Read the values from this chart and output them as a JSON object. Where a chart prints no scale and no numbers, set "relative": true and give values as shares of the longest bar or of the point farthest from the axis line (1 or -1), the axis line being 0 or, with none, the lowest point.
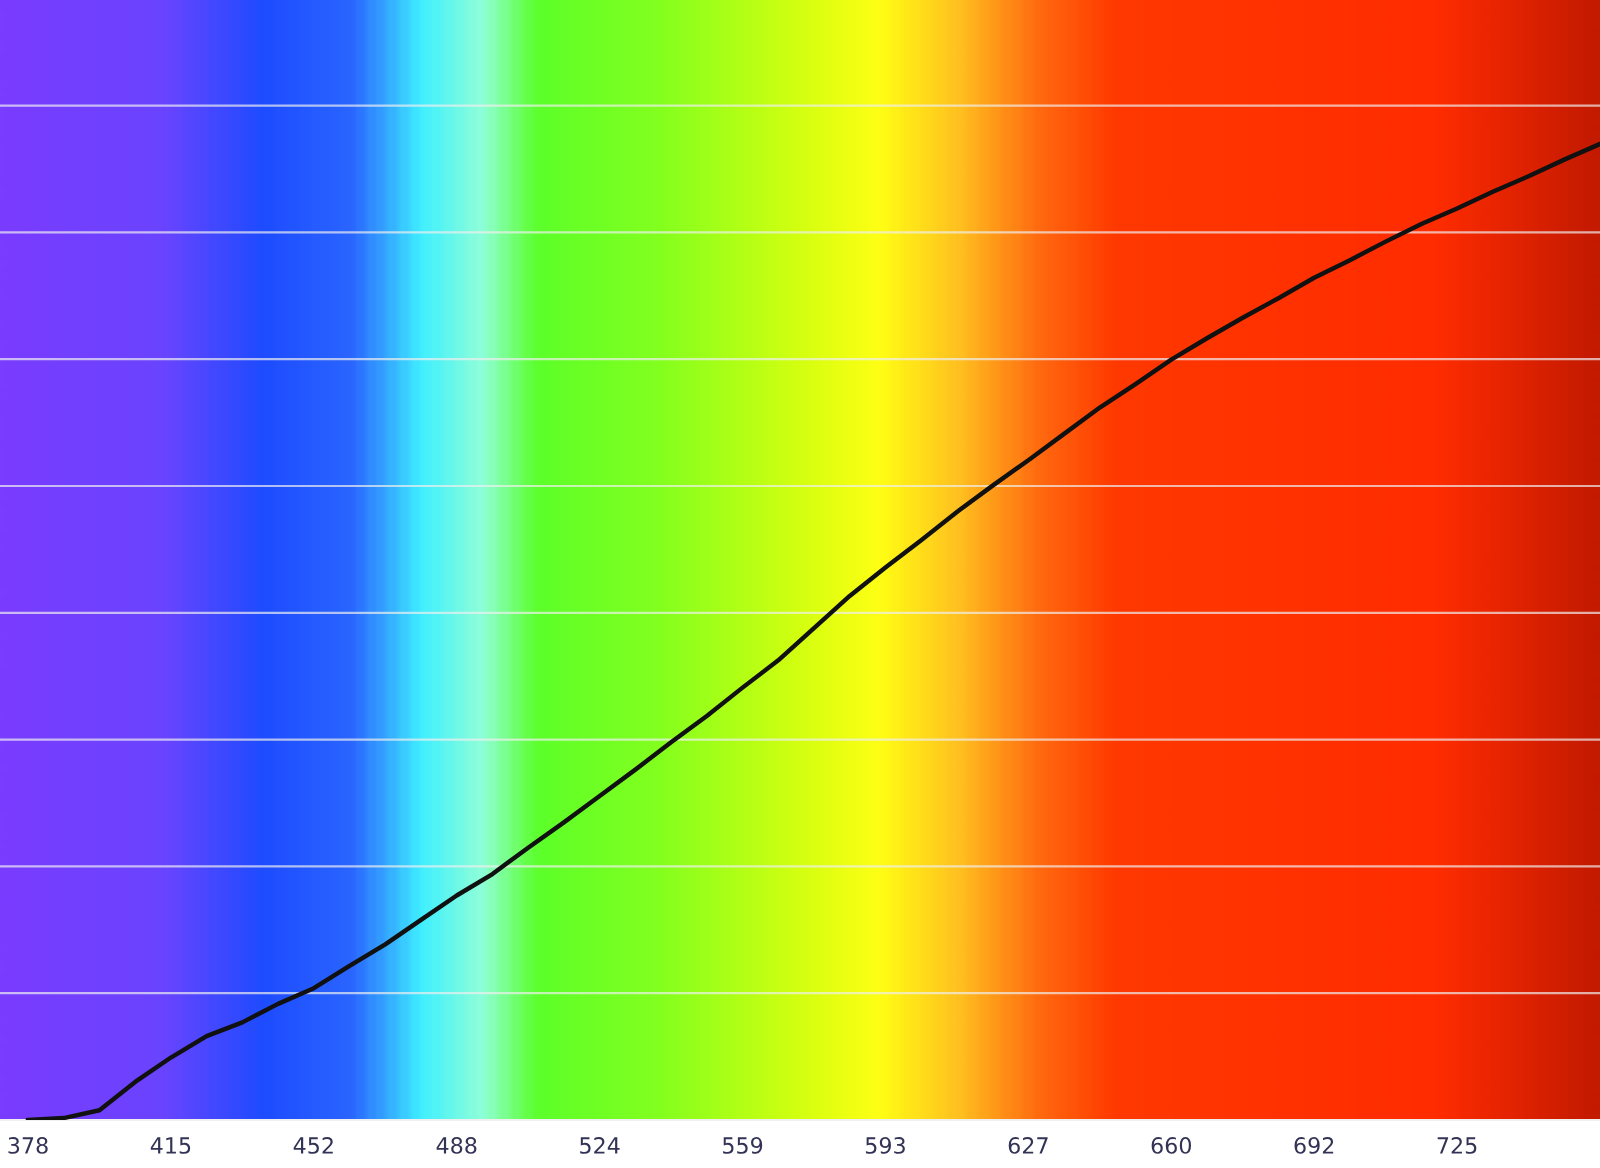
{
  "chart_data": {
    "type": "line",
    "relative": true,
    "grid": "y",
    "categories": [
      "378",
      null,
      null,
      null,
      "415",
      null,
      null,
      null,
      "452",
      null,
      null,
      null,
      "488",
      null,
      null,
      null,
      "524",
      null,
      null,
      null,
      "559",
      null,
      null,
      null,
      "593",
      null,
      null,
      null,
      "627",
      null,
      null,
      null,
      "660",
      null,
      null,
      null,
      "692",
      null,
      null,
      null,
      "725",
      null,
      null,
      null,
      null
    ],
    "series": [
      {
        "color": "#111111",
        "values": [
          0,
          0.002,
          0.01,
          0.039,
          0.064,
          0.086,
          0.1,
          0.119,
          0.135,
          0.158,
          0.18,
          0.205,
          0.23,
          0.252,
          0.279,
          0.305,
          0.332,
          0.359,
          0.387,
          0.414,
          0.443,
          0.471,
          0.504,
          0.537,
          0.566,
          0.594,
          0.623,
          0.65,
          0.676,
          0.703,
          0.73,
          0.754,
          0.779,
          0.801,
          0.822,
          0.842,
          0.863,
          0.881,
          0.9,
          0.918,
          0.934,
          0.951,
          0.967,
          0.984,
          1.0
        ]
      }
    ]
  }
}
